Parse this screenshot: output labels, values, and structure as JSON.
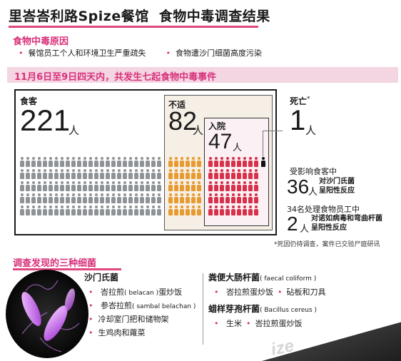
{
  "title": {
    "part1": "里峇峇利路Spize餐馆",
    "part2": "食物中毒调查结果"
  },
  "causes": {
    "heading": "食物中毒原因",
    "items": [
      "餐馆员工个人和环境卫生严重疏失",
      "食物遭沙门细菌高度污染"
    ]
  },
  "summary": {
    "banner": "11月6日至9日四天内，共发生七起食物中毒事件",
    "diners": {
      "label": "食客",
      "value": "221",
      "unit": "人"
    },
    "unwell": {
      "label": "不适",
      "value": "82",
      "unit": "人"
    },
    "hospitalized": {
      "label": "入院",
      "value": "47",
      "unit": "人"
    },
    "deaths": {
      "label": "死亡",
      "mark": "*",
      "value": "1",
      "unit": "人"
    },
    "colors": {
      "diners": "#8e9397",
      "unwell": "#e89a2e",
      "hospitalized": "#d8304a",
      "death": "#111111"
    },
    "affected": {
      "label": "受影响食客中",
      "value": "36",
      "unit": "人",
      "desc": [
        "对沙门氏菌",
        "呈阳性反应"
      ]
    },
    "staff": {
      "label": "34名处理食物员工中",
      "value": "2",
      "unit": "人",
      "desc": [
        "对诺如病毒和弯曲杆菌",
        "呈阳性反应"
      ]
    },
    "footnote": "*死因仍待调查，案件已交验尸庭研讯"
  },
  "bacteria": {
    "heading": "调查发现的三种细菌",
    "salmonella": {
      "name": "沙门氏菌",
      "items": [
        {
          "text": "峇拉煎",
          "note": "( belacan )",
          "tail": "蛋炒饭"
        },
        {
          "text": "参峇拉煎",
          "note": "( sambal belachan )",
          "tail": ""
        },
        {
          "text": "冷却室门把和储物架",
          "note": "",
          "tail": ""
        },
        {
          "text": "生鸡肉和蕹菜",
          "note": "",
          "tail": ""
        }
      ]
    },
    "coliform": {
      "name": "粪便大肠杆菌",
      "note": "( faecal coliform )",
      "items": [
        "峇拉煎蛋炒饭",
        "砧板和刀具"
      ]
    },
    "cereus": {
      "name": "蜡样芽孢杆菌",
      "note": "( Bacillus cereus )",
      "items": [
        "生米",
        "峇拉煎蛋炒饭"
      ]
    }
  },
  "corner_text": "ize"
}
